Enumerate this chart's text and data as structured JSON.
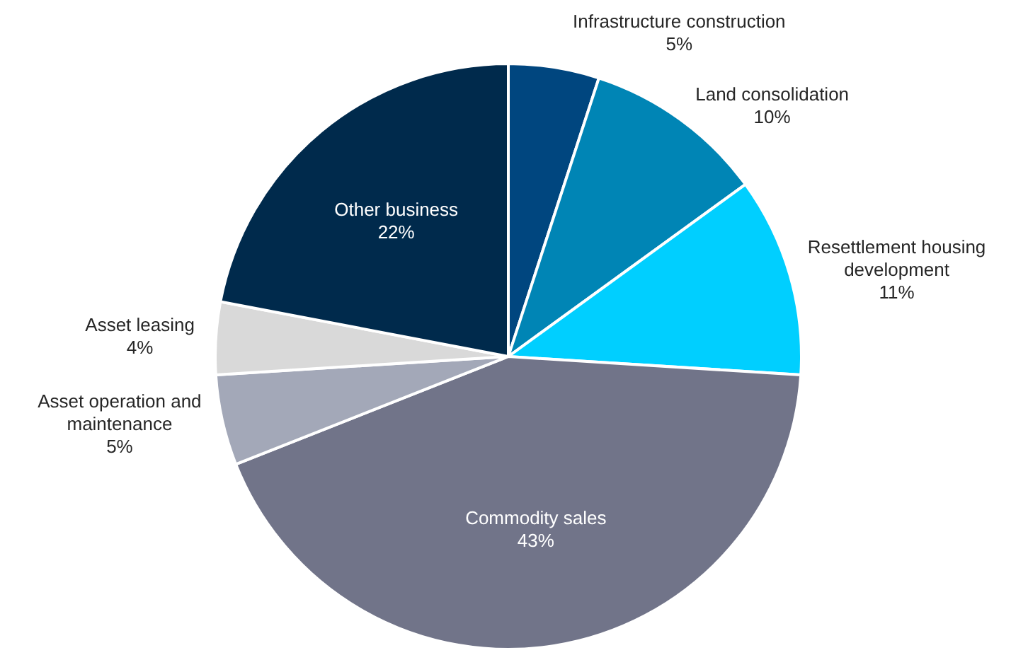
{
  "chart_data": {
    "type": "pie",
    "categories": [
      "Infrastructure construction",
      "Land consolidation",
      "Resettlement housing development",
      "Commodity sales",
      "Asset operation and maintenance",
      "Asset leasing",
      "Other business"
    ],
    "values": [
      5,
      10,
      11,
      43,
      5,
      4,
      22
    ],
    "value_labels": [
      "5%",
      "10%",
      "11%",
      "43%",
      "5%",
      "4%",
      "22%"
    ],
    "colors": [
      "#00467f",
      "#0085b5",
      "#00cfff",
      "#717489",
      "#a3a8b8",
      "#d9d9d9",
      "#002a4c"
    ]
  }
}
